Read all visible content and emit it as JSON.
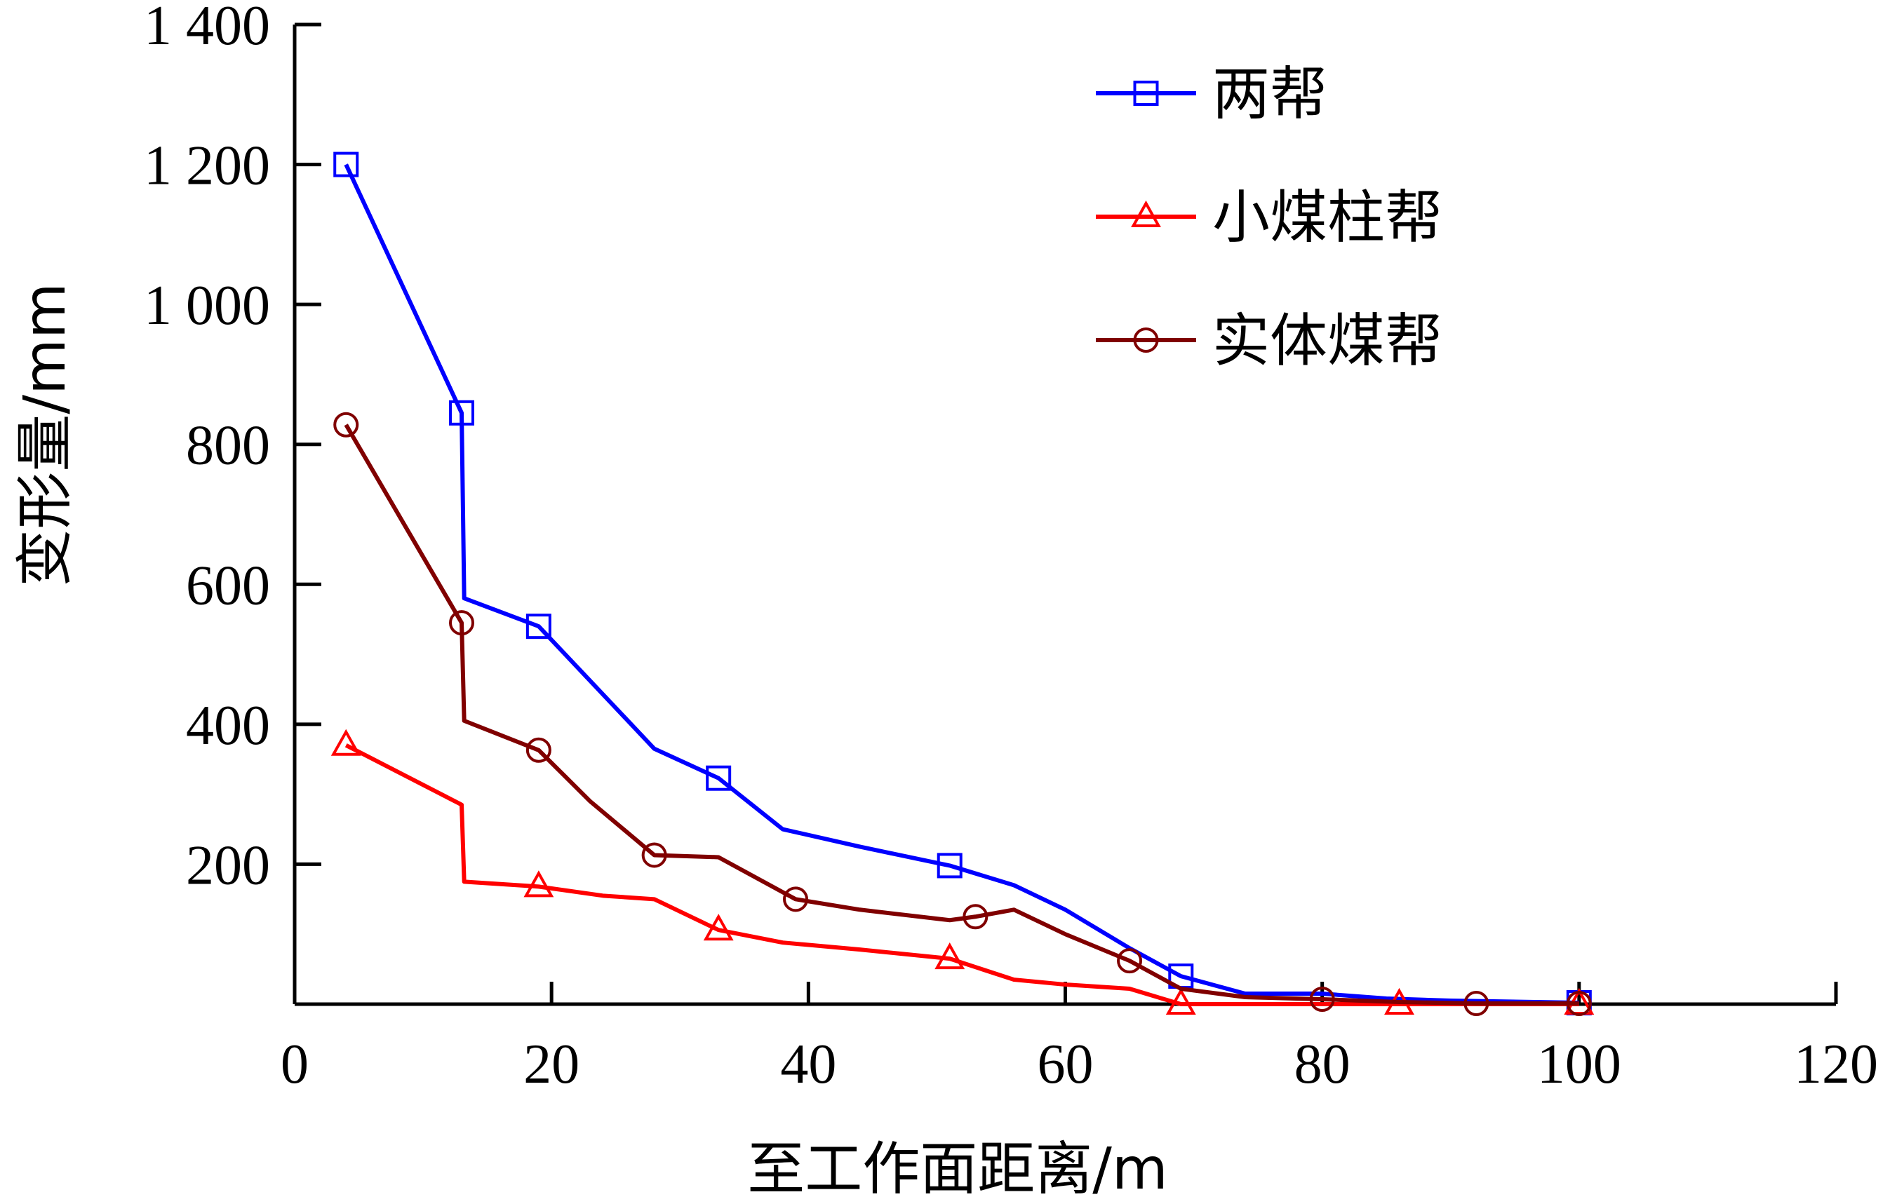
{
  "chart_data": {
    "type": "line",
    "xlabel": "至工作面距离/m",
    "ylabel": "变形量/mm",
    "xlim": [
      0,
      120
    ],
    "ylim": [
      0,
      1400
    ],
    "x_ticks": [
      "0",
      "20",
      "40",
      "60",
      "80",
      "100",
      "120"
    ],
    "x_tick_values": [
      0,
      20,
      40,
      60,
      80,
      100,
      120
    ],
    "y_ticks": [
      "200",
      "400",
      "600",
      "800",
      "1 000",
      "1 200",
      "1 400"
    ],
    "y_tick_values": [
      200,
      400,
      600,
      800,
      1000,
      1200,
      1400
    ],
    "grid": false,
    "legend_position": "top-right",
    "series": [
      {
        "name": "两帮",
        "color": "#0000ff",
        "marker": "square",
        "points": [
          [
            4,
            1200
          ],
          [
            13,
            845
          ],
          [
            13.2,
            580
          ],
          [
            19,
            540
          ],
          [
            28,
            365
          ],
          [
            33,
            323
          ],
          [
            38,
            250
          ],
          [
            44,
            225
          ],
          [
            51,
            198
          ],
          [
            56,
            170
          ],
          [
            60,
            135
          ],
          [
            65,
            80
          ],
          [
            69,
            40
          ],
          [
            74,
            15
          ],
          [
            80,
            15
          ],
          [
            85,
            8
          ],
          [
            90,
            5
          ],
          [
            100,
            2
          ]
        ],
        "markers": [
          [
            4,
            1200
          ],
          [
            13,
            845
          ],
          [
            19,
            540
          ],
          [
            33,
            323
          ],
          [
            51,
            198
          ],
          [
            69,
            40
          ],
          [
            100,
            2
          ]
        ]
      },
      {
        "name": "小煤柱帮",
        "color": "#ff0000",
        "marker": "triangle",
        "points": [
          [
            4,
            370
          ],
          [
            13,
            285
          ],
          [
            13.2,
            175
          ],
          [
            19,
            168
          ],
          [
            24,
            155
          ],
          [
            28,
            150
          ],
          [
            33,
            106
          ],
          [
            38,
            88
          ],
          [
            44,
            78
          ],
          [
            51,
            65
          ],
          [
            56,
            35
          ],
          [
            60,
            28
          ],
          [
            65,
            22
          ],
          [
            69,
            0
          ],
          [
            80,
            0
          ],
          [
            86,
            0
          ],
          [
            100,
            0
          ]
        ],
        "markers": [
          [
            4,
            370
          ],
          [
            19,
            168
          ],
          [
            33,
            106
          ],
          [
            51,
            65
          ],
          [
            69,
            0
          ],
          [
            86,
            0
          ],
          [
            100,
            0
          ]
        ]
      },
      {
        "name": "实体煤帮",
        "color": "#800000",
        "marker": "circle",
        "points": [
          [
            4,
            828
          ],
          [
            13,
            545
          ],
          [
            13.2,
            405
          ],
          [
            19,
            363
          ],
          [
            23,
            290
          ],
          [
            28,
            213
          ],
          [
            33,
            210
          ],
          [
            39,
            150
          ],
          [
            44,
            135
          ],
          [
            51,
            120
          ],
          [
            53,
            125
          ],
          [
            56,
            135
          ],
          [
            60,
            100
          ],
          [
            65,
            62
          ],
          [
            69,
            22
          ],
          [
            74,
            10
          ],
          [
            80,
            7
          ],
          [
            86,
            3
          ],
          [
            92,
            1
          ],
          [
            100,
            1
          ]
        ],
        "markers": [
          [
            4,
            828
          ],
          [
            13,
            545
          ],
          [
            19,
            363
          ],
          [
            28,
            213
          ],
          [
            39,
            150
          ],
          [
            53,
            125
          ],
          [
            65,
            62
          ],
          [
            80,
            7
          ],
          [
            92,
            1
          ],
          [
            100,
            1
          ]
        ]
      }
    ]
  }
}
